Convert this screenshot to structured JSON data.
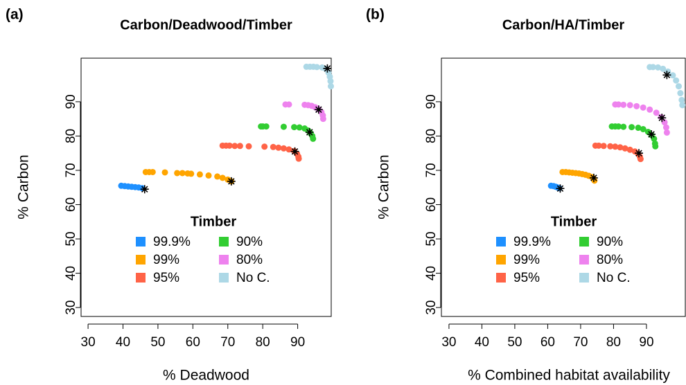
{
  "chart_data": [
    {
      "type": "scatter",
      "label": "(a)",
      "title": "Carbon/Deadwood/Timber",
      "x_label": "% Deadwood",
      "y_label": "% Carbon",
      "xlim": [
        28,
        99.6
      ],
      "xticks": [
        30,
        40,
        50,
        60,
        70,
        80,
        90
      ],
      "ylim": [
        27.4,
        102.7
      ],
      "yticks": [
        30,
        40,
        50,
        60,
        70,
        80,
        90
      ],
      "legend_title": "Timber",
      "series": [
        {
          "name": "99.9%",
          "color": "#1e90ff",
          "x": [
            39.5,
            40.5,
            41.5,
            42.5,
            43.5,
            44.5,
            45.5
          ],
          "values": [
            65.5,
            65.4,
            65.3,
            65.2,
            65.1,
            65,
            64.8
          ],
          "star_x": 46.2,
          "star_y": 64.5
        },
        {
          "name": "99%",
          "color": "#ffa500",
          "x": [
            46.5,
            47.5,
            48.5,
            52,
            55.5,
            57,
            58.5,
            59.5,
            62,
            64.5,
            67,
            68.5,
            70,
            71
          ],
          "values": [
            69.5,
            69.5,
            69.5,
            69.4,
            69.2,
            69.2,
            69.1,
            69,
            68.8,
            68.5,
            68.2,
            67.8,
            67.3,
            66.8
          ],
          "star_x": 71,
          "star_y": 66.8
        },
        {
          "name": "95%",
          "color": "#ff6347",
          "x": [
            68.5,
            69.5,
            70.5,
            72,
            73.5,
            76,
            80.5,
            83,
            84.5,
            86,
            87.5,
            89,
            89.8,
            90.2,
            90.3
          ],
          "values": [
            77.2,
            77.2,
            77.2,
            77.1,
            77.1,
            77,
            76.9,
            76.8,
            76.6,
            76.4,
            76.1,
            75.6,
            74.8,
            74,
            73.4
          ],
          "star_x": 89.2,
          "star_y": 75.5
        },
        {
          "name": "90%",
          "color": "#32cd32",
          "x": [
            79.5,
            80,
            81,
            86,
            89,
            90.5,
            92,
            93,
            93.7,
            94.2,
            94.4
          ],
          "values": [
            82.8,
            82.8,
            82.8,
            82.7,
            82.6,
            82.5,
            82.2,
            81.6,
            80.8,
            80,
            79.2
          ],
          "star_x": 93.4,
          "star_y": 81.1
        },
        {
          "name": "80%",
          "color": "#ee82ee",
          "x": [
            86.5,
            87.5,
            92,
            93,
            94,
            95,
            96,
            96.8,
            97.2,
            97.3
          ],
          "values": [
            89.2,
            89.2,
            89.1,
            89,
            88.8,
            88.4,
            87.8,
            87,
            86,
            85
          ],
          "star_x": 96,
          "star_y": 87.7
        },
        {
          "name": "No C.",
          "color": "#add8e6",
          "x": [
            92.5,
            93.5,
            94.5,
            95.5,
            97,
            98,
            98.8,
            99.2,
            99.4,
            99.5
          ],
          "values": [
            100.2,
            100.2,
            100.2,
            100.1,
            100,
            99.6,
            98.5,
            97.3,
            96,
            94.5
          ],
          "star_x": 98.5,
          "star_y": 99.7
        }
      ]
    },
    {
      "type": "scatter",
      "label": "(b)",
      "title": "Carbon/HA/Timber",
      "x_label": "% Combined habitat availability",
      "y_label": "% Carbon",
      "xlim": [
        27.7,
        101.8
      ],
      "xticks": [
        30,
        40,
        50,
        60,
        70,
        80,
        90
      ],
      "ylim": [
        27.4,
        102.7
      ],
      "yticks": [
        30,
        40,
        50,
        60,
        70,
        80,
        90
      ],
      "legend_title": "Timber",
      "series": [
        {
          "name": "99.9%",
          "color": "#1e90ff",
          "x": [
            61,
            61.8,
            62.5,
            63,
            63.5
          ],
          "values": [
            65.5,
            65.4,
            65.2,
            65,
            64.8
          ],
          "star_x": 63.8,
          "star_y": 64.7
        },
        {
          "name": "99%",
          "color": "#ffa500",
          "x": [
            64.5,
            65.5,
            66.5,
            67.5,
            68.5,
            69.5,
            70.5,
            71.5,
            72.5,
            73.5,
            74,
            74.2
          ],
          "values": [
            69.5,
            69.5,
            69.4,
            69.3,
            69.2,
            69.1,
            68.9,
            68.7,
            68.4,
            68,
            67.5,
            67
          ],
          "star_x": 74,
          "star_y": 67.8
        },
        {
          "name": "95%",
          "color": "#ff6347",
          "x": [
            74.5,
            75.5,
            77,
            79,
            80.5,
            82,
            83.5,
            85,
            86.5,
            87.5,
            88,
            88.2
          ],
          "values": [
            77.2,
            77.2,
            77.1,
            77,
            76.9,
            76.7,
            76.4,
            76,
            75.5,
            74.8,
            74,
            73.3
          ],
          "star_x": 87.7,
          "star_y": 75
        },
        {
          "name": "90%",
          "color": "#32cd32",
          "x": [
            79.5,
            80.5,
            81.5,
            83,
            85.5,
            87.5,
            89,
            90.5,
            91.5,
            92.3,
            92.6,
            92.7
          ],
          "values": [
            82.8,
            82.8,
            82.8,
            82.7,
            82.6,
            82.4,
            82,
            81.2,
            80.3,
            79.2,
            77.8,
            77
          ],
          "star_x": 91.5,
          "star_y": 80.5
        },
        {
          "name": "80%",
          "color": "#ee82ee",
          "x": [
            80.5,
            81.5,
            83,
            85,
            87,
            89,
            91,
            93,
            94.5,
            95.5,
            96,
            96.2
          ],
          "values": [
            89.2,
            89.2,
            89.1,
            89,
            88.7,
            88.3,
            87.7,
            86.8,
            85.5,
            84,
            82.5,
            81
          ],
          "star_x": 94.7,
          "star_y": 85.3
        },
        {
          "name": "No C.",
          "color": "#add8e6",
          "x": [
            91,
            92,
            93.5,
            95,
            96.5,
            98,
            99,
            99.8,
            100.3,
            100.7,
            100.9
          ],
          "values": [
            100.1,
            100.1,
            100,
            99.6,
            98.8,
            97.7,
            96.2,
            94.5,
            92.5,
            90.5,
            89
          ],
          "star_x": 96.2,
          "star_y": 97.8
        }
      ]
    }
  ]
}
